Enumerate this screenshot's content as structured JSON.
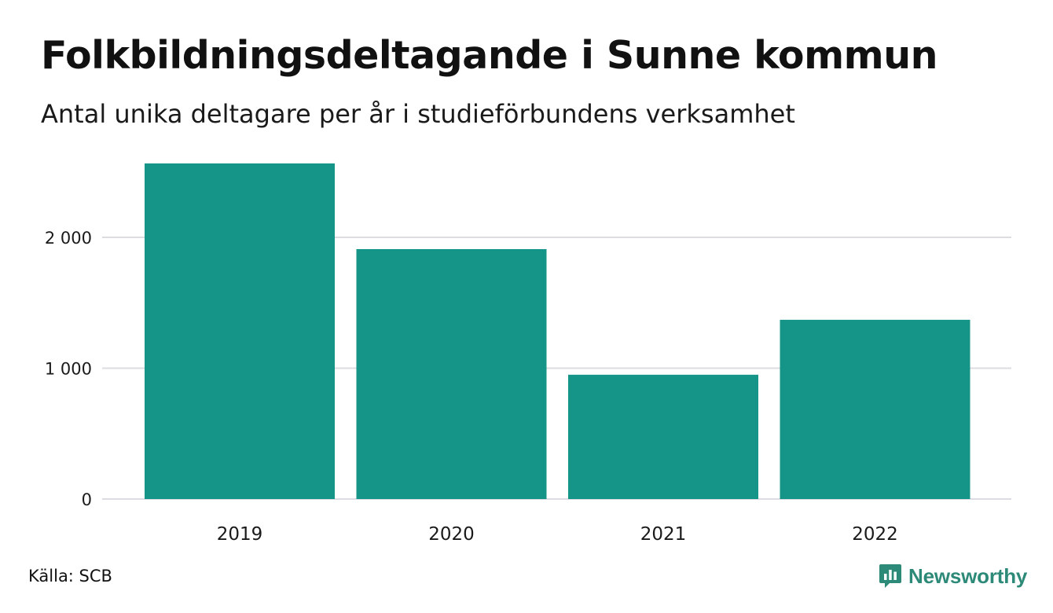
{
  "header": {
    "title": "Folkbildningsdeltagande i Sunne kommun",
    "subtitle": "Antal unika deltagare per år i studieförbundens verksamhet"
  },
  "footer": {
    "source": "Källa: SCB",
    "brand": "Newsworthy"
  },
  "colors": {
    "bar": "#149587",
    "grid": "#dcdce2",
    "brand": "#2e8a78"
  },
  "icons": {
    "brand_logo": "newsworthy-logo-icon"
  },
  "chart_data": {
    "type": "bar",
    "title": "Folkbildningsdeltagande i Sunne kommun",
    "subtitle": "Antal unika deltagare per år i studieförbundens verksamhet",
    "categories": [
      "2019",
      "2020",
      "2021",
      "2022"
    ],
    "values": [
      2565,
      1910,
      950,
      1370
    ],
    "ylim": [
      0,
      2700
    ],
    "yticks": [
      0,
      1000,
      2000
    ],
    "ytick_labels": [
      "0",
      "1 000",
      "2 000"
    ],
    "grid": true,
    "legend": "none"
  }
}
